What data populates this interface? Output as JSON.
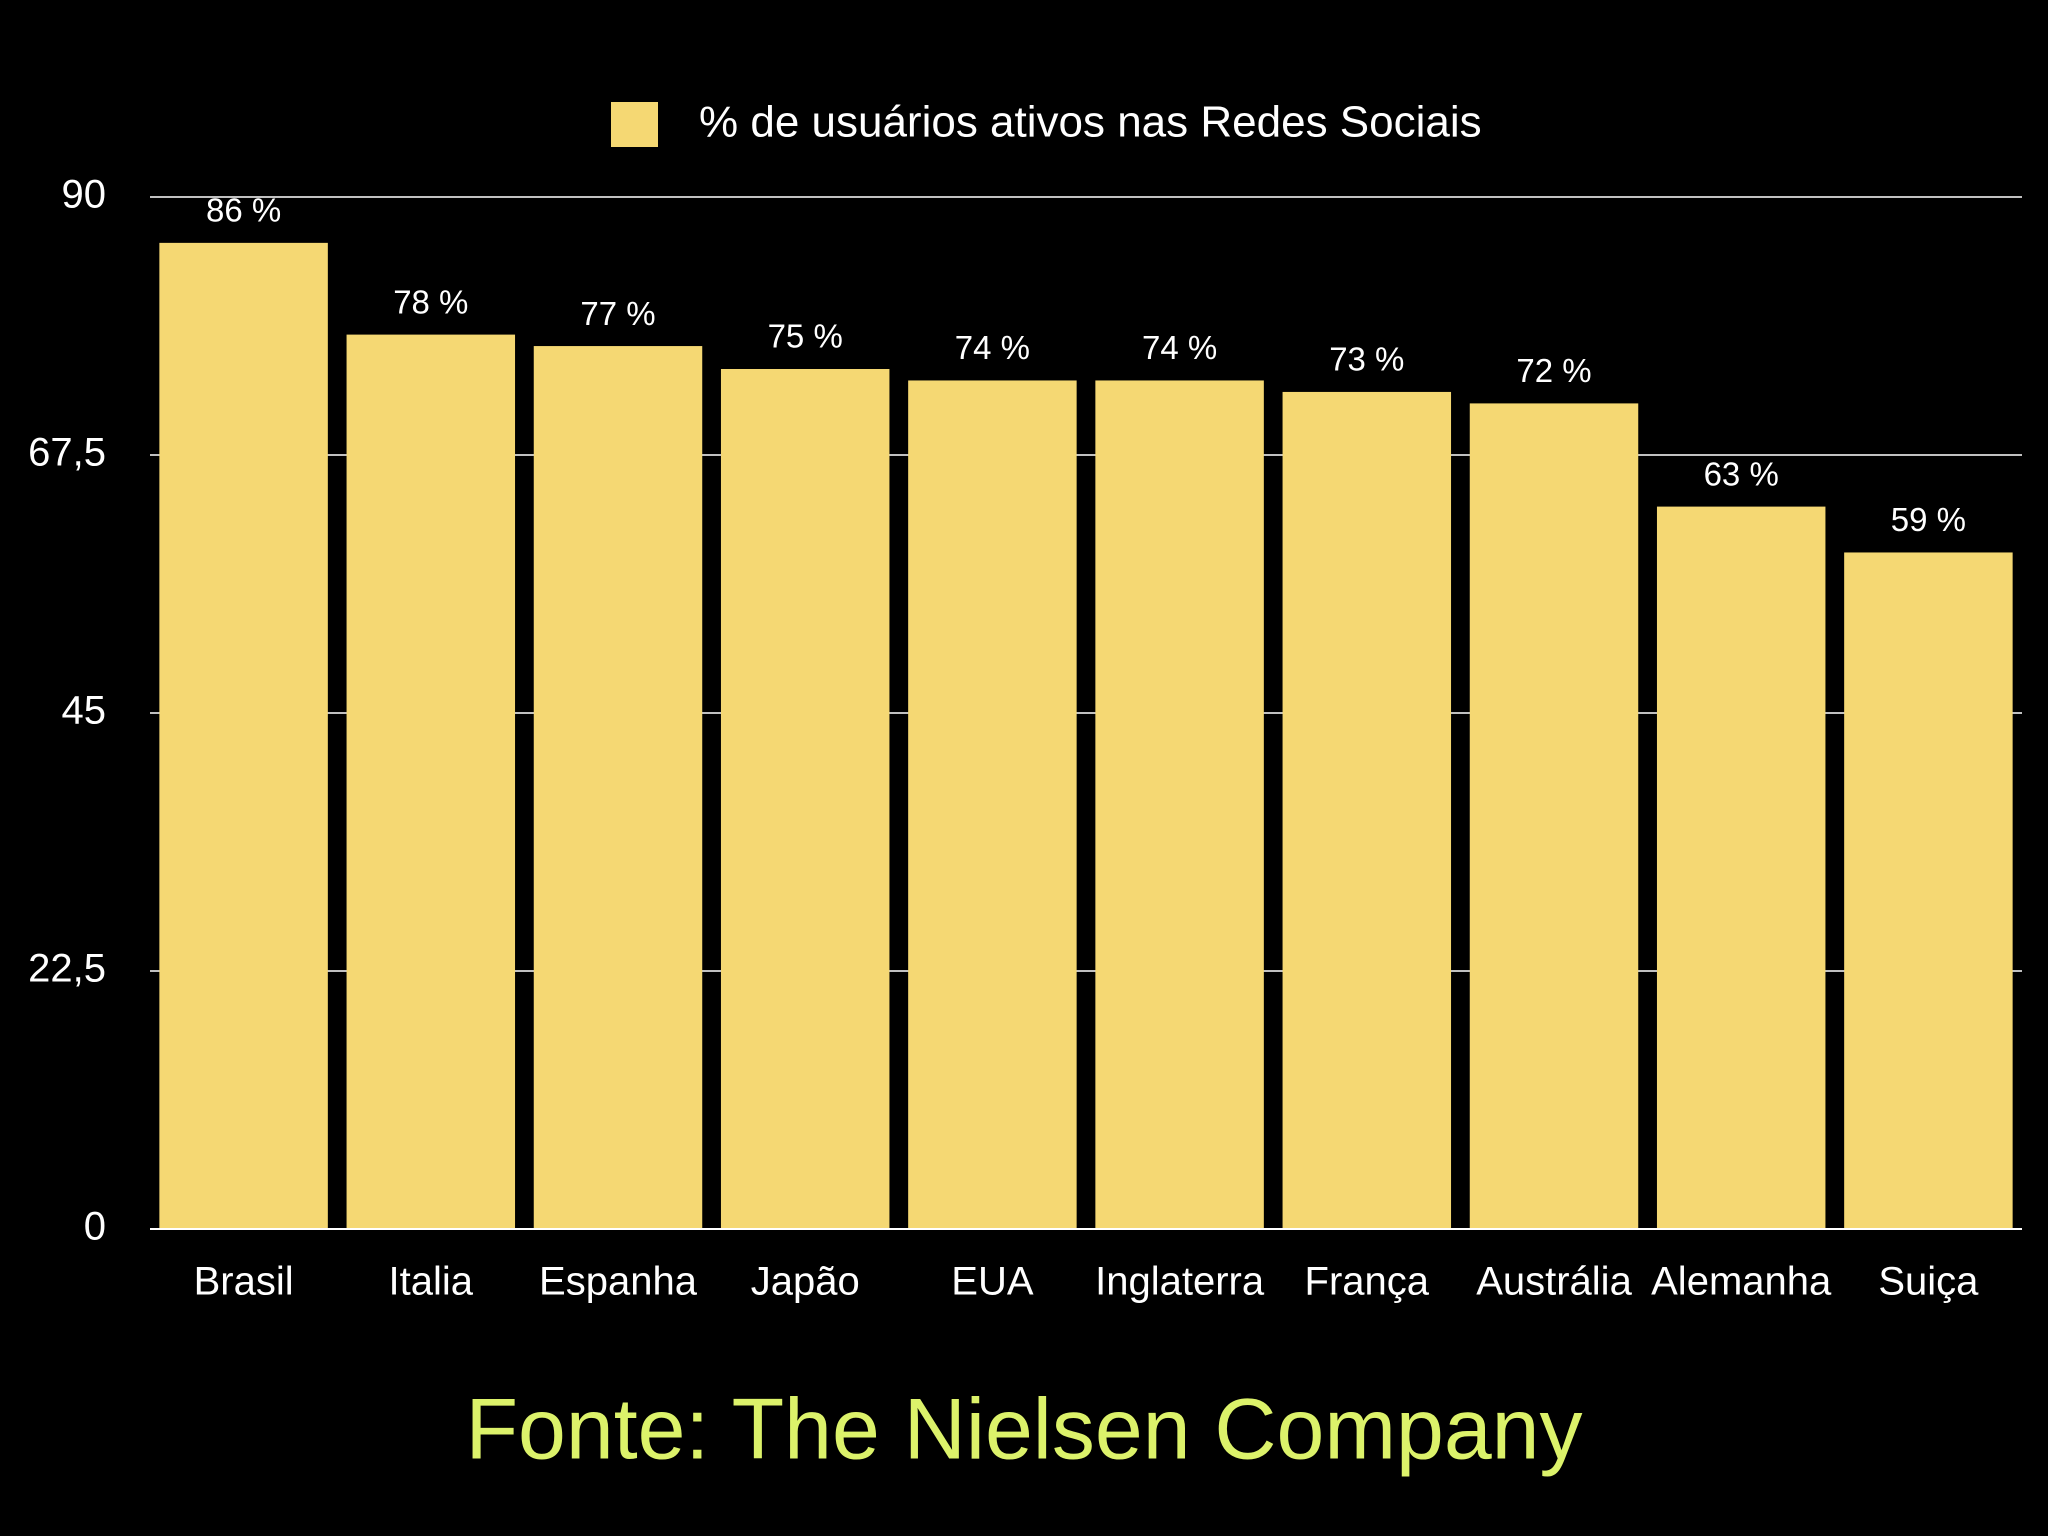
{
  "chart_data": {
    "type": "bar",
    "categories": [
      "Brasil",
      "Italia",
      "Espanha",
      "Japão",
      "EUA",
      "Inglaterra",
      "França",
      "Austrália",
      "Alemanha",
      "Suiça"
    ],
    "series": [
      {
        "name": "% de usuários ativos nas Redes Sociais",
        "color": "#f5d873",
        "values": [
          86,
          78,
          77,
          75,
          74,
          74,
          73,
          72,
          63,
          59
        ],
        "value_labels": [
          "86 %",
          "78 %",
          "77 %",
          "75 %",
          "74 %",
          "74 %",
          "73 %",
          "72 %",
          "63 %",
          "59 %"
        ]
      }
    ],
    "ylim": [
      0,
      90
    ],
    "yticks": [
      0,
      {
        "value": 22.5,
        "label": "22,5"
      },
      45,
      {
        "value": 67.5,
        "label": "67,5"
      },
      90
    ],
    "grid": true,
    "legend": "top",
    "footer": "Fonte: The Nielsen Company"
  }
}
